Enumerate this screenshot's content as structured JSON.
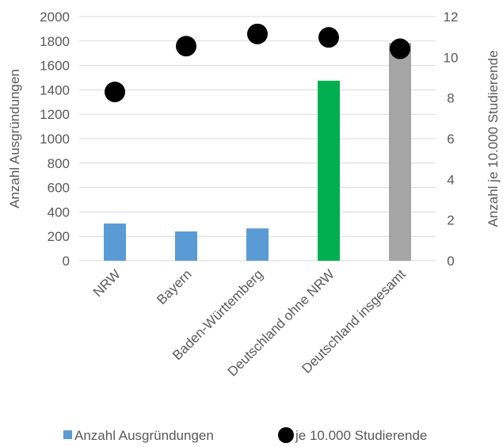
{
  "chart_data": {
    "type": "bar",
    "categories": [
      "NRW",
      "Bayern",
      "Baden-Württemberg",
      "Deutschland ohne NRW",
      "Deutschland insgesamt"
    ],
    "series": [
      {
        "name": "Anzahl Ausgründungen",
        "type": "bar",
        "axis": "left",
        "values": [
          305,
          240,
          265,
          1475,
          1785
        ],
        "colors": [
          "#5b9bd5",
          "#5b9bd5",
          "#5b9bd5",
          "#00b050",
          "#a5a5a5"
        ]
      },
      {
        "name": "je 10.000 Studierende",
        "type": "scatter",
        "axis": "right",
        "values": [
          8.3,
          10.55,
          11.15,
          10.98,
          10.42
        ],
        "color": "#000000"
      }
    ],
    "ylabel": "Anzahl Ausgründungen",
    "y2label": "Anzahl je 10.000 Studierende",
    "ylim": [
      0,
      2000
    ],
    "y2lim": [
      0,
      12
    ],
    "yticks": [
      0,
      200,
      400,
      600,
      800,
      1000,
      1200,
      1400,
      1600,
      1800,
      2000
    ],
    "y2ticks": [
      0,
      2,
      4,
      6,
      8,
      10,
      12
    ],
    "grid": true,
    "legend_position": "bottom"
  }
}
